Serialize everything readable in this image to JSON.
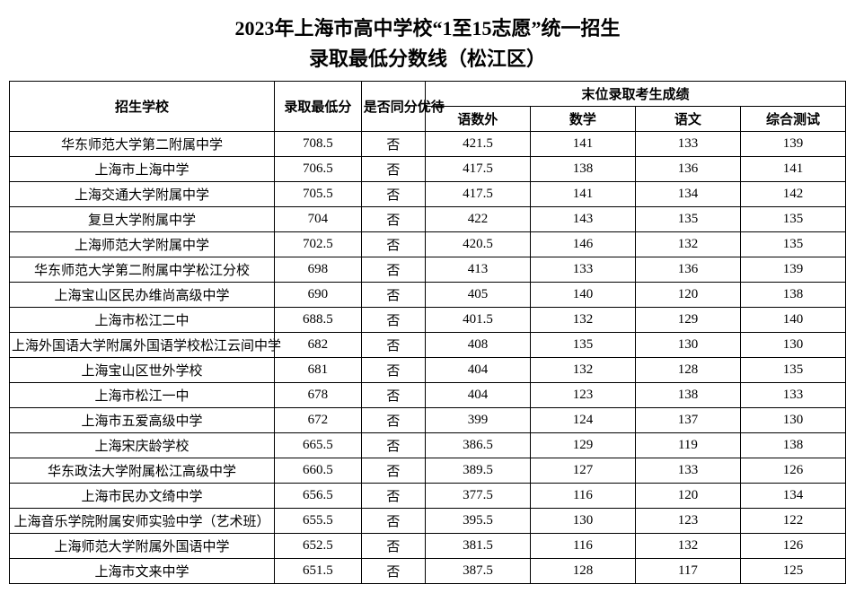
{
  "title_line1": "2023年上海市高中学校“1至15志愿”统一招生",
  "title_line2": "录取最低分数线（松江区）",
  "headers": {
    "school": "招生学校",
    "min_score": "录取最低分",
    "same_score_priority": "是否同分优待",
    "last_scores_group": "末位录取考生成绩",
    "sub_ysw": "语数外",
    "sub_math": "数学",
    "sub_chinese": "语文",
    "sub_comp": "综合测试"
  },
  "rows": [
    {
      "school": "华东师范大学第二附属中学",
      "min": "708.5",
      "same": "否",
      "ysw": "421.5",
      "math": "141",
      "chi": "133",
      "comp": "139"
    },
    {
      "school": "上海市上海中学",
      "min": "706.5",
      "same": "否",
      "ysw": "417.5",
      "math": "138",
      "chi": "136",
      "comp": "141"
    },
    {
      "school": "上海交通大学附属中学",
      "min": "705.5",
      "same": "否",
      "ysw": "417.5",
      "math": "141",
      "chi": "134",
      "comp": "142"
    },
    {
      "school": "复旦大学附属中学",
      "min": "704",
      "same": "否",
      "ysw": "422",
      "math": "143",
      "chi": "135",
      "comp": "135"
    },
    {
      "school": "上海师范大学附属中学",
      "min": "702.5",
      "same": "否",
      "ysw": "420.5",
      "math": "146",
      "chi": "132",
      "comp": "135"
    },
    {
      "school": "华东师范大学第二附属中学松江分校",
      "min": "698",
      "same": "否",
      "ysw": "413",
      "math": "133",
      "chi": "136",
      "comp": "139"
    },
    {
      "school": "上海宝山区民办维尚高级中学",
      "min": "690",
      "same": "否",
      "ysw": "405",
      "math": "140",
      "chi": "120",
      "comp": "138"
    },
    {
      "school": "上海市松江二中",
      "min": "688.5",
      "same": "否",
      "ysw": "401.5",
      "math": "132",
      "chi": "129",
      "comp": "140"
    },
    {
      "school": "上海外国语大学附属外国语学校松江云间中学",
      "min": "682",
      "same": "否",
      "ysw": "408",
      "math": "135",
      "chi": "130",
      "comp": "130"
    },
    {
      "school": "上海宝山区世外学校",
      "min": "681",
      "same": "否",
      "ysw": "404",
      "math": "132",
      "chi": "128",
      "comp": "135"
    },
    {
      "school": "上海市松江一中",
      "min": "678",
      "same": "否",
      "ysw": "404",
      "math": "123",
      "chi": "138",
      "comp": "133"
    },
    {
      "school": "上海市五爱高级中学",
      "min": "672",
      "same": "否",
      "ysw": "399",
      "math": "124",
      "chi": "137",
      "comp": "130"
    },
    {
      "school": "上海宋庆龄学校",
      "min": "665.5",
      "same": "否",
      "ysw": "386.5",
      "math": "129",
      "chi": "119",
      "comp": "138"
    },
    {
      "school": "华东政法大学附属松江高级中学",
      "min": "660.5",
      "same": "否",
      "ysw": "389.5",
      "math": "127",
      "chi": "133",
      "comp": "126"
    },
    {
      "school": "上海市民办文绮中学",
      "min": "656.5",
      "same": "否",
      "ysw": "377.5",
      "math": "116",
      "chi": "120",
      "comp": "134"
    },
    {
      "school": "上海音乐学院附属安师实验中学（艺术班）",
      "min": "655.5",
      "same": "否",
      "ysw": "395.5",
      "math": "130",
      "chi": "123",
      "comp": "122"
    },
    {
      "school": "上海师范大学附属外国语中学",
      "min": "652.5",
      "same": "否",
      "ysw": "381.5",
      "math": "116",
      "chi": "132",
      "comp": "126"
    },
    {
      "school": "上海市文来中学",
      "min": "651.5",
      "same": "否",
      "ysw": "387.5",
      "math": "128",
      "chi": "117",
      "comp": "125"
    }
  ],
  "style": {
    "background": "#ffffff",
    "text_color": "#000000",
    "border_color": "#000000",
    "title_fontsize": 22,
    "cell_fontsize": 15,
    "font_family": "SimSun"
  }
}
